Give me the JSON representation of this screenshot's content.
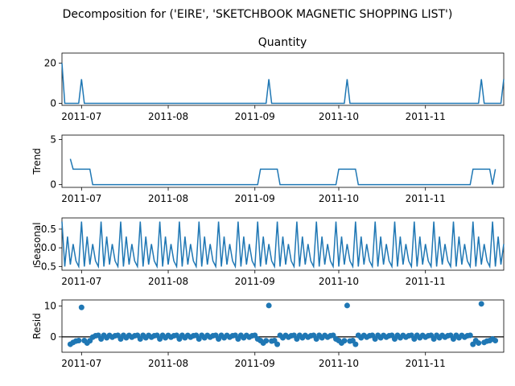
{
  "title": "Decomposition for ('EIRE', 'SKETCHBOOK MAGNETIC SHOPPING LIST')",
  "colors": {
    "line": "#1f77b4",
    "axis": "#000000"
  },
  "x_tick_labels": [
    "2011-07",
    "2011-08",
    "2011-09",
    "2011-10",
    "2011-11"
  ],
  "chart_data": [
    {
      "type": "line",
      "title": "Quantity",
      "ylabel": "",
      "x": [
        "2011-06-24",
        "2011-06-30",
        "2011-07-01",
        "2011-07-02",
        "2011-09-05",
        "2011-09-06",
        "2011-09-07",
        "2011-10-03",
        "2011-10-04",
        "2011-10-05",
        "2011-11-20",
        "2011-11-21",
        "2011-11-22",
        "2011-11-28",
        "2011-11-29"
      ],
      "values": [
        20,
        0,
        12,
        0,
        0,
        12,
        0,
        0,
        12,
        0,
        0,
        12,
        0,
        0,
        12
      ],
      "x_note": "",
      "ylim": [
        -1,
        25
      ],
      "yticks": [
        0,
        20
      ]
    },
    {
      "type": "line",
      "title": "",
      "ylabel": "Trend",
      "ylim": [
        -0.3,
        5.5
      ],
      "yticks": [
        0,
        5
      ]
    },
    {
      "type": "line",
      "title": "",
      "ylabel": "Seasonal",
      "ylim": [
        -0.6,
        0.8
      ],
      "yticks": [
        0.5,
        0.0,
        -0.5
      ],
      "ytick_labels": [
        "0.5",
        "0.0",
        "−0.5"
      ]
    },
    {
      "type": "scatter",
      "title": "",
      "ylabel": "Resid",
      "ylim": [
        -5,
        12
      ],
      "yticks": [
        0,
        10
      ]
    }
  ]
}
